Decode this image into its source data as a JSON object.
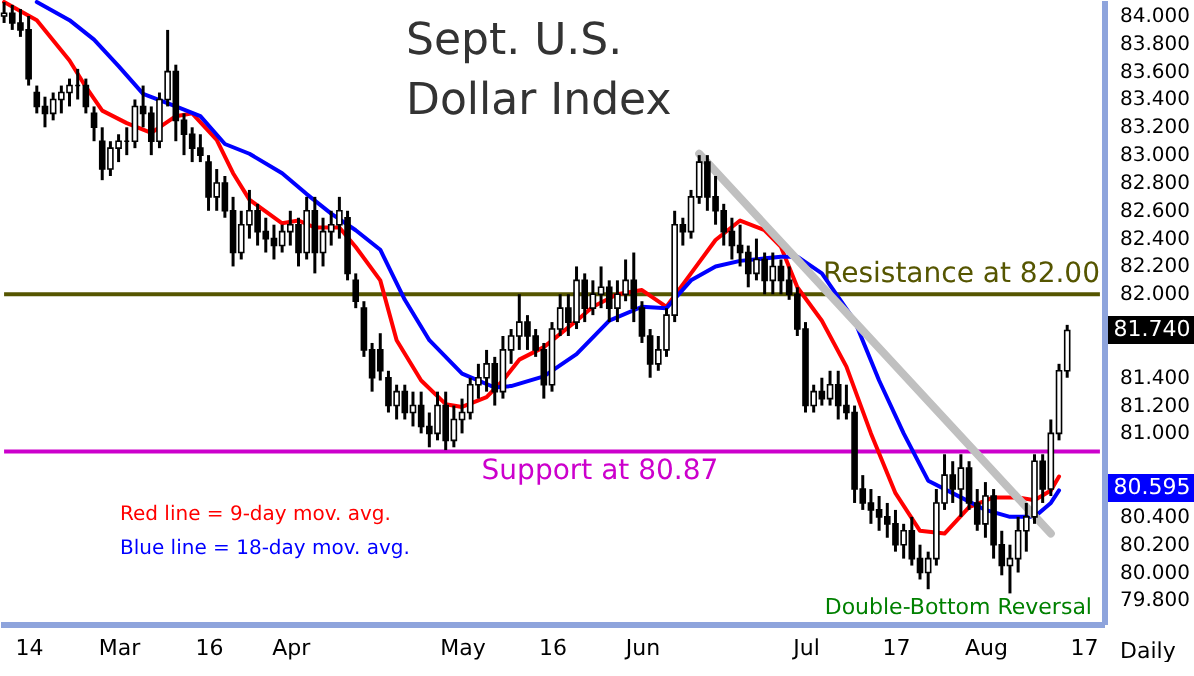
{
  "chart_data": {
    "type": "candlestick",
    "title": "Sept. U.S.\nDollar Index",
    "xlabel": "Daily",
    "categories": [
      null,
      null,
      null,
      "14",
      null,
      null,
      null,
      null,
      null,
      null,
      null,
      null,
      null,
      null,
      "Mar",
      null,
      null,
      null,
      null,
      null,
      null,
      null,
      null,
      null,
      null,
      "16",
      null,
      null,
      null,
      null,
      null,
      null,
      null,
      null,
      null,
      "Apr",
      null,
      null,
      null,
      null,
      null,
      null,
      null,
      null,
      null,
      null,
      null,
      null,
      null,
      null,
      null,
      null,
      null,
      null,
      null,
      null,
      "May",
      null,
      null,
      null,
      null,
      null,
      null,
      null,
      null,
      null,
      null,
      "16",
      null,
      null,
      null,
      null,
      null,
      null,
      null,
      null,
      null,
      null,
      "Jun",
      null,
      null,
      null,
      null,
      null,
      null,
      null,
      null,
      null,
      null,
      null,
      null,
      null,
      null,
      null,
      null,
      null,
      null,
      null,
      "Jul",
      null,
      null,
      null,
      null,
      null,
      null,
      null,
      null,
      null,
      null,
      "17",
      null,
      null,
      null,
      null,
      null,
      null,
      null,
      null,
      null,
      null,
      "Aug",
      null,
      null,
      null,
      null,
      null,
      null,
      null,
      null,
      null,
      null,
      null,
      "17",
      null,
      null
    ],
    "ohlc": [
      [
        84.0,
        84.1,
        83.95,
        84.02
      ],
      [
        84.02,
        84.08,
        83.9,
        83.95
      ],
      [
        83.95,
        84.05,
        83.85,
        83.9
      ],
      [
        83.9,
        84.0,
        83.5,
        83.55
      ],
      [
        83.45,
        83.5,
        83.3,
        83.35
      ],
      [
        83.35,
        83.42,
        83.2,
        83.3
      ],
      [
        83.3,
        83.45,
        83.25,
        83.4
      ],
      [
        83.4,
        83.5,
        83.3,
        83.45
      ],
      [
        83.45,
        83.55,
        83.35,
        83.5
      ],
      [
        83.5,
        83.62,
        83.4,
        83.5
      ],
      [
        83.5,
        83.55,
        83.3,
        83.35
      ],
      [
        83.3,
        83.35,
        83.1,
        83.2
      ],
      [
        83.1,
        83.2,
        82.82,
        82.9
      ],
      [
        82.9,
        83.1,
        82.85,
        83.05
      ],
      [
        83.05,
        83.15,
        82.95,
        83.1
      ],
      [
        83.1,
        83.2,
        83.0,
        83.1
      ],
      [
        83.1,
        83.4,
        83.05,
        83.35
      ],
      [
        83.35,
        83.5,
        83.2,
        83.3
      ],
      [
        83.3,
        83.35,
        83.0,
        83.1
      ],
      [
        83.1,
        83.45,
        83.05,
        83.4
      ],
      [
        83.4,
        83.9,
        83.35,
        83.6
      ],
      [
        83.6,
        83.65,
        83.1,
        83.25
      ],
      [
        83.25,
        83.3,
        83.0,
        83.15
      ],
      [
        83.15,
        83.2,
        82.95,
        83.05
      ],
      [
        83.05,
        83.15,
        82.95,
        83.0
      ],
      [
        82.95,
        83.0,
        82.6,
        82.7
      ],
      [
        82.7,
        82.9,
        82.6,
        82.8
      ],
      [
        82.8,
        82.85,
        82.55,
        82.6
      ],
      [
        82.6,
        82.7,
        82.2,
        82.3
      ],
      [
        82.3,
        82.6,
        82.25,
        82.5
      ],
      [
        82.5,
        82.75,
        82.4,
        82.6
      ],
      [
        82.6,
        82.65,
        82.35,
        82.45
      ],
      [
        82.45,
        82.55,
        82.3,
        82.4
      ],
      [
        82.4,
        82.5,
        82.25,
        82.35
      ],
      [
        82.35,
        82.5,
        82.3,
        82.45
      ],
      [
        82.45,
        82.6,
        82.35,
        82.5
      ],
      [
        82.5,
        82.55,
        82.2,
        82.3
      ],
      [
        82.3,
        82.7,
        82.25,
        82.6
      ],
      [
        82.6,
        82.7,
        82.15,
        82.3
      ],
      [
        82.3,
        82.55,
        82.2,
        82.45
      ],
      [
        82.45,
        82.6,
        82.35,
        82.5
      ],
      [
        82.5,
        82.7,
        82.4,
        82.6
      ],
      [
        82.55,
        82.6,
        82.1,
        82.15
      ],
      [
        82.1,
        82.15,
        81.9,
        81.95
      ],
      [
        81.9,
        81.95,
        81.55,
        81.6
      ],
      [
        81.6,
        81.65,
        81.3,
        81.4
      ],
      [
        81.6,
        81.72,
        81.38,
        81.45
      ],
      [
        81.4,
        81.45,
        81.15,
        81.2
      ],
      [
        81.2,
        81.35,
        81.1,
        81.3
      ],
      [
        81.3,
        81.35,
        81.1,
        81.15
      ],
      [
        81.15,
        81.3,
        81.05,
        81.2
      ],
      [
        81.2,
        81.3,
        81.0,
        81.05
      ],
      [
        81.05,
        81.15,
        80.9,
        81.0
      ],
      [
        81.0,
        81.3,
        80.95,
        81.2
      ],
      [
        81.2,
        81.3,
        80.88,
        80.95
      ],
      [
        80.95,
        81.2,
        80.9,
        81.1
      ],
      [
        81.1,
        81.25,
        81.0,
        81.15
      ],
      [
        81.15,
        81.4,
        81.1,
        81.35
      ],
      [
        81.35,
        81.5,
        81.25,
        81.4
      ],
      [
        81.4,
        81.6,
        81.3,
        81.5
      ],
      [
        81.5,
        81.55,
        81.2,
        81.3
      ],
      [
        81.3,
        81.7,
        81.25,
        81.6
      ],
      [
        81.6,
        81.75,
        81.5,
        81.7
      ],
      [
        81.7,
        82.0,
        81.6,
        81.8
      ],
      [
        81.8,
        81.85,
        81.6,
        81.7
      ],
      [
        81.7,
        81.75,
        81.55,
        81.6
      ],
      [
        81.6,
        81.65,
        81.25,
        81.35
      ],
      [
        81.35,
        81.8,
        81.3,
        81.75
      ],
      [
        81.75,
        82.0,
        81.7,
        81.9
      ],
      [
        81.9,
        82.0,
        81.7,
        81.8
      ],
      [
        81.8,
        82.2,
        81.75,
        82.1
      ],
      [
        82.1,
        82.15,
        81.8,
        81.9
      ],
      [
        81.9,
        82.1,
        81.85,
        82.0
      ],
      [
        82.0,
        82.2,
        81.9,
        82.05
      ],
      [
        82.05,
        82.1,
        81.8,
        81.9
      ],
      [
        81.9,
        82.1,
        81.8,
        82.0
      ],
      [
        82.0,
        82.25,
        81.95,
        82.1
      ],
      [
        82.1,
        82.3,
        81.8,
        81.9
      ],
      [
        81.9,
        81.95,
        81.65,
        81.7
      ],
      [
        81.7,
        81.75,
        81.4,
        81.5
      ],
      [
        81.5,
        81.7,
        81.45,
        81.6
      ],
      [
        81.6,
        81.9,
        81.55,
        81.85
      ],
      [
        81.85,
        82.6,
        81.8,
        82.5
      ],
      [
        82.5,
        82.55,
        82.35,
        82.45
      ],
      [
        82.45,
        82.75,
        82.4,
        82.7
      ],
      [
        82.7,
        83.0,
        82.65,
        82.95
      ],
      [
        82.95,
        83.0,
        82.6,
        82.7
      ],
      [
        82.7,
        82.85,
        82.5,
        82.6
      ],
      [
        82.6,
        82.65,
        82.35,
        82.45
      ],
      [
        82.45,
        82.55,
        82.25,
        82.35
      ],
      [
        82.35,
        82.5,
        82.2,
        82.3
      ],
      [
        82.3,
        82.35,
        82.05,
        82.15
      ],
      [
        82.15,
        82.4,
        82.1,
        82.25
      ],
      [
        82.25,
        82.3,
        82.0,
        82.1
      ],
      [
        82.1,
        82.3,
        82.0,
        82.2
      ],
      [
        82.2,
        82.25,
        82.0,
        82.1
      ],
      [
        82.1,
        82.2,
        81.96,
        82.0
      ],
      [
        82.0,
        82.05,
        81.7,
        81.75
      ],
      [
        81.75,
        81.8,
        81.15,
        81.2
      ],
      [
        81.2,
        81.35,
        81.15,
        81.3
      ],
      [
        81.3,
        81.4,
        81.2,
        81.25
      ],
      [
        81.25,
        81.45,
        81.2,
        81.35
      ],
      [
        81.35,
        81.45,
        81.1,
        81.2
      ],
      [
        81.2,
        81.35,
        81.1,
        81.15
      ],
      [
        81.15,
        81.2,
        80.5,
        80.6
      ],
      [
        80.6,
        80.7,
        80.45,
        80.5
      ],
      [
        80.5,
        80.6,
        80.35,
        80.45
      ],
      [
        80.45,
        80.55,
        80.3,
        80.4
      ],
      [
        80.4,
        80.5,
        80.25,
        80.35
      ],
      [
        80.35,
        80.45,
        80.15,
        80.2
      ],
      [
        80.2,
        80.35,
        80.1,
        80.3
      ],
      [
        80.3,
        80.4,
        80.05,
        80.1
      ],
      [
        80.1,
        80.2,
        79.95,
        80.0
      ],
      [
        80.0,
        80.15,
        79.88,
        80.1
      ],
      [
        80.1,
        80.6,
        80.05,
        80.5
      ],
      [
        80.5,
        80.85,
        80.45,
        80.7
      ],
      [
        80.7,
        80.8,
        80.5,
        80.6
      ],
      [
        80.6,
        80.85,
        80.4,
        80.75
      ],
      [
        80.75,
        80.8,
        80.45,
        80.5
      ],
      [
        80.5,
        80.6,
        80.3,
        80.35
      ],
      [
        80.35,
        80.65,
        80.25,
        80.55
      ],
      [
        80.55,
        80.6,
        80.1,
        80.2
      ],
      [
        80.2,
        80.3,
        79.98,
        80.05
      ],
      [
        80.05,
        80.2,
        79.85,
        80.1
      ],
      [
        80.1,
        80.4,
        80.0,
        80.3
      ],
      [
        80.3,
        80.5,
        80.15,
        80.4
      ],
      [
        80.4,
        80.85,
        80.35,
        80.8
      ],
      [
        80.8,
        80.85,
        80.5,
        80.6
      ],
      [
        80.6,
        81.1,
        80.55,
        81.0
      ],
      [
        81.0,
        81.5,
        80.95,
        81.45
      ],
      [
        81.45,
        81.78,
        81.4,
        81.74
      ],
      null,
      null,
      null,
      null
    ],
    "ylim": [
      79.63,
      84.115
    ],
    "yticks": [
      {
        "value": 79.8,
        "label": "79.800"
      },
      {
        "value": 80.0,
        "label": "80.000"
      },
      {
        "value": 80.2,
        "label": "80.200"
      },
      {
        "value": 80.4,
        "label": "80.400"
      },
      {
        "value": 81.0,
        "label": "81.000"
      },
      {
        "value": 81.2,
        "label": "81.200"
      },
      {
        "value": 81.4,
        "label": "81.400"
      },
      {
        "value": 82.0,
        "label": "82.000"
      },
      {
        "value": 82.2,
        "label": "82.200"
      },
      {
        "value": 82.4,
        "label": "82.400"
      },
      {
        "value": 82.6,
        "label": "82.600"
      },
      {
        "value": 82.8,
        "label": "82.800"
      },
      {
        "value": 83.0,
        "label": "83.000"
      },
      {
        "value": 83.2,
        "label": "83.200"
      },
      {
        "value": 83.4,
        "label": "83.400"
      },
      {
        "value": 83.6,
        "label": "83.600"
      },
      {
        "value": 83.8,
        "label": "83.800"
      },
      {
        "value": 84.0,
        "label": "84.000"
      }
    ],
    "series": [
      {
        "name": "Red line = 9-day mov. avg.",
        "type": "line",
        "color": "#ff0000",
        "values": [
          84.1,
          null,
          null,
          null,
          83.97,
          null,
          null,
          null,
          83.68,
          null,
          83.49,
          null,
          83.32,
          null,
          null,
          83.23,
          null,
          null,
          83.16,
          null,
          null,
          83.28,
          null,
          83.3,
          null,
          null,
          83.11,
          null,
          82.87,
          null,
          82.68,
          null,
          null,
          null,
          82.51,
          null,
          82.53,
          null,
          82.48,
          null,
          null,
          82.48,
          null,
          82.34,
          null,
          null,
          82.1,
          null,
          81.67,
          null,
          null,
          81.38,
          null,
          null,
          81.21,
          null,
          81.19,
          null,
          null,
          81.26,
          null,
          81.38,
          null,
          81.53,
          null,
          null,
          81.62,
          null,
          null,
          null,
          81.81,
          null,
          81.91,
          null,
          null,
          82.0,
          null,
          null,
          82.03,
          null,
          null,
          81.91,
          null,
          null,
          82.15,
          null,
          null,
          82.39,
          null,
          null,
          82.53,
          null,
          null,
          82.46,
          null,
          82.34,
          null,
          82.05,
          null,
          null,
          81.81,
          null,
          null,
          81.48,
          null,
          null,
          81.0,
          null,
          null,
          80.57,
          null,
          null,
          80.3,
          null,
          null,
          80.28,
          null,
          null,
          80.47,
          null,
          null,
          80.54,
          null,
          null,
          80.54,
          null,
          80.52,
          null,
          80.59,
          80.69,
          null,
          null,
          null,
          null,
          null
        ]
      },
      {
        "name": "Blue line = 18-day mov. avg.",
        "type": "line",
        "color": "#0000ff",
        "values": [
          null,
          null,
          null,
          null,
          84.1,
          null,
          null,
          null,
          83.97,
          null,
          null,
          83.83,
          null,
          null,
          83.64,
          null,
          null,
          83.44,
          null,
          null,
          null,
          83.35,
          null,
          null,
          83.28,
          null,
          null,
          83.08,
          null,
          null,
          83.01,
          null,
          null,
          null,
          82.87,
          null,
          null,
          82.72,
          null,
          null,
          82.58,
          null,
          null,
          82.46,
          null,
          null,
          82.32,
          null,
          null,
          81.96,
          null,
          null,
          81.67,
          null,
          null,
          null,
          81.43,
          null,
          null,
          null,
          81.33,
          null,
          81.34,
          null,
          null,
          null,
          81.41,
          null,
          null,
          null,
          81.57,
          null,
          null,
          null,
          81.81,
          null,
          null,
          null,
          81.91,
          null,
          null,
          81.9,
          null,
          null,
          82.1,
          null,
          null,
          82.2,
          null,
          null,
          82.24,
          null,
          null,
          null,
          null,
          82.27,
          null,
          82.27,
          null,
          null,
          82.15,
          null,
          null,
          null,
          81.81,
          null,
          null,
          81.38,
          null,
          null,
          81.0,
          null,
          null,
          80.66,
          null,
          null,
          null,
          80.54,
          null,
          null,
          80.45,
          null,
          null,
          80.4,
          null,
          null,
          80.4,
          null,
          80.5,
          80.59,
          null,
          null,
          null,
          null,
          null
        ]
      },
      {
        "type": "line",
        "color": "#c0c0c0",
        "values": [
          null,
          null,
          null,
          null,
          null,
          null,
          null,
          null,
          null,
          null,
          null,
          null,
          null,
          null,
          null,
          null,
          null,
          null,
          null,
          null,
          null,
          null,
          null,
          null,
          null,
          null,
          null,
          null,
          null,
          null,
          null,
          null,
          null,
          null,
          null,
          null,
          null,
          null,
          null,
          null,
          null,
          null,
          null,
          null,
          null,
          null,
          null,
          null,
          null,
          null,
          null,
          null,
          null,
          null,
          null,
          null,
          null,
          null,
          null,
          null,
          null,
          null,
          null,
          null,
          null,
          null,
          null,
          null,
          null,
          null,
          null,
          null,
          null,
          null,
          null,
          null,
          null,
          null,
          null,
          null,
          null,
          null,
          null,
          null,
          null,
          83.01,
          null,
          null,
          null,
          null,
          null,
          null,
          null,
          null,
          null,
          null,
          null,
          null,
          null,
          null,
          null,
          null,
          null,
          null,
          null,
          null,
          null,
          null,
          null,
          null,
          null,
          null,
          null,
          null,
          null,
          null,
          null,
          null,
          null,
          null,
          null,
          null,
          null,
          null,
          null,
          null,
          null,
          null,
          80.28,
          null,
          null,
          null,
          null,
          null,
          null
        ]
      }
    ],
    "ref_lines": [
      {
        "axis": "y",
        "value": 82.0,
        "label": "Resistance at 82.00",
        "color": "#555500"
      },
      {
        "axis": "y",
        "value": 80.87,
        "label": "Support at 80.87",
        "color": "#cc00cc"
      }
    ],
    "annotations": [
      "81.740",
      "80.595",
      "Double-Bottom Reversal"
    ]
  }
}
